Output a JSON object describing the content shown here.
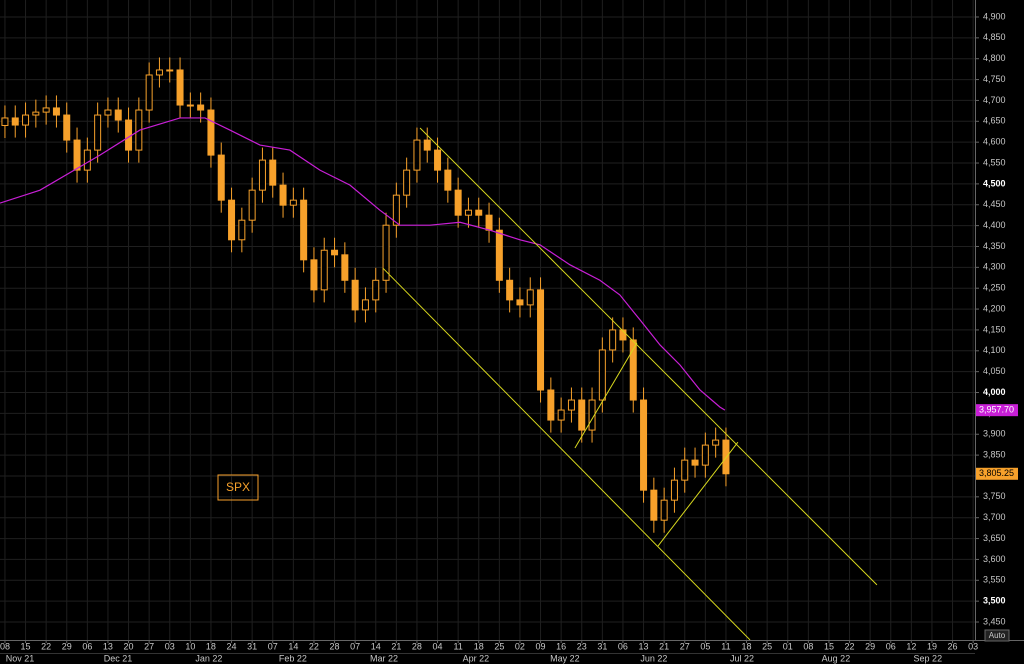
{
  "chart_data": {
    "type": "candlestick",
    "annotation": "SPX",
    "scale_mode": "Auto",
    "xlim": [
      -0.24,
      47.09
    ],
    "ylim": [
      3406.9,
      4940.7
    ],
    "grid": true,
    "xticks": [
      {
        "value": 0,
        "label": "08"
      },
      {
        "value": 1,
        "label": "15"
      },
      {
        "value": 2,
        "label": "22"
      },
      {
        "value": 3,
        "label": "29"
      },
      {
        "value": 4,
        "label": "06"
      },
      {
        "value": 5,
        "label": "13"
      },
      {
        "value": 6,
        "label": "20"
      },
      {
        "value": 7,
        "label": "27"
      },
      {
        "value": 8,
        "label": "03"
      },
      {
        "value": 9,
        "label": "10"
      },
      {
        "value": 10,
        "label": "18"
      },
      {
        "value": 11,
        "label": "24"
      },
      {
        "value": 12,
        "label": "31"
      },
      {
        "value": 13,
        "label": "07"
      },
      {
        "value": 14,
        "label": "14"
      },
      {
        "value": 15,
        "label": "22"
      },
      {
        "value": 16,
        "label": "28"
      },
      {
        "value": 17,
        "label": "07"
      },
      {
        "value": 18,
        "label": "14"
      },
      {
        "value": 19,
        "label": "21"
      },
      {
        "value": 20,
        "label": "28"
      },
      {
        "value": 21,
        "label": "04"
      },
      {
        "value": 22,
        "label": "11"
      },
      {
        "value": 23,
        "label": "18"
      },
      {
        "value": 24,
        "label": "25"
      },
      {
        "value": 25,
        "label": "02"
      },
      {
        "value": 26,
        "label": "09"
      },
      {
        "value": 27,
        "label": "16"
      },
      {
        "value": 28,
        "label": "23"
      },
      {
        "value": 29,
        "label": "31"
      },
      {
        "value": 30,
        "label": "06"
      },
      {
        "value": 31,
        "label": "13"
      },
      {
        "value": 32,
        "label": "21"
      },
      {
        "value": 33,
        "label": "27"
      },
      {
        "value": 34,
        "label": "05"
      },
      {
        "value": 35,
        "label": "11"
      },
      {
        "value": 36,
        "label": "18"
      },
      {
        "value": 37,
        "label": "25"
      },
      {
        "value": 38,
        "label": "01"
      },
      {
        "value": 39,
        "label": "08"
      },
      {
        "value": 40,
        "label": "15"
      },
      {
        "value": 41,
        "label": "22"
      },
      {
        "value": 42,
        "label": "29"
      },
      {
        "value": 43,
        "label": "06"
      },
      {
        "value": 44,
        "label": "12"
      },
      {
        "value": 45,
        "label": "19"
      },
      {
        "value": 46,
        "label": "26"
      },
      {
        "value": 47,
        "label": "03"
      }
    ],
    "months": [
      {
        "value": 0.73,
        "label": "Nov 21"
      },
      {
        "value": 5.49,
        "label": "Dec 21"
      },
      {
        "value": 9.9,
        "label": "Jan 22"
      },
      {
        "value": 13.98,
        "label": "Feb 22"
      },
      {
        "value": 18.4,
        "label": "Mar 22"
      },
      {
        "value": 22.86,
        "label": "Apr 22"
      },
      {
        "value": 27.18,
        "label": "May 22"
      },
      {
        "value": 31.5,
        "label": "Jun 22"
      },
      {
        "value": 35.78,
        "label": "Jul 22"
      },
      {
        "value": 40.34,
        "label": "Aug 22"
      },
      {
        "value": 44.8,
        "label": "Sep 22"
      }
    ],
    "yticks": [
      {
        "value": 3450,
        "label": "3,450"
      },
      {
        "value": 3500,
        "label": "3,500"
      },
      {
        "value": 3550,
        "label": "3,550"
      },
      {
        "value": 3600,
        "label": "3,600"
      },
      {
        "value": 3650,
        "label": "3,650"
      },
      {
        "value": 3700,
        "label": "3,700"
      },
      {
        "value": 3750,
        "label": "3,750"
      },
      {
        "value": 3800,
        "label": "3,800"
      },
      {
        "value": 3850,
        "label": "3,850"
      },
      {
        "value": 3900,
        "label": "3,900"
      },
      {
        "value": 3950,
        "label": "3,950"
      },
      {
        "value": 4000,
        "label": "4,000"
      },
      {
        "value": 4050,
        "label": "4,050"
      },
      {
        "value": 4100,
        "label": "4,100"
      },
      {
        "value": 4150,
        "label": "4,150"
      },
      {
        "value": 4200,
        "label": "4,200"
      },
      {
        "value": 4250,
        "label": "4,250"
      },
      {
        "value": 4300,
        "label": "4,300"
      },
      {
        "value": 4350,
        "label": "4,350"
      },
      {
        "value": 4400,
        "label": "4,400"
      },
      {
        "value": 4450,
        "label": "4,450"
      },
      {
        "value": 4500,
        "label": "4,500"
      },
      {
        "value": 4550,
        "label": "4,550"
      },
      {
        "value": 4600,
        "label": "4,600"
      },
      {
        "value": 4650,
        "label": "4,650"
      },
      {
        "value": 4700,
        "label": "4,700"
      },
      {
        "value": 4750,
        "label": "4,750"
      },
      {
        "value": 4800,
        "label": "4,800"
      },
      {
        "value": 4850,
        "label": "4,850"
      },
      {
        "value": 4900,
        "label": "4,900"
      }
    ],
    "candles": {
      "color": "#f7a12b",
      "last_label": "3,805.25",
      "x": [
        0,
        0.5,
        1,
        1.5,
        2,
        2.5,
        3,
        3.5,
        4,
        4.5,
        5,
        5.5,
        6,
        6.5,
        7,
        7.5,
        8,
        8.5,
        9,
        9.5,
        10,
        10.5,
        11,
        11.5,
        12,
        12.5,
        13,
        13.5,
        14,
        14.5,
        15,
        15.5,
        16,
        16.5,
        17,
        17.5,
        18,
        18.5,
        19,
        19.5,
        20,
        20.5,
        21,
        21.5,
        22,
        22.5,
        23,
        23.5,
        24,
        24.5,
        25,
        25.5,
        26,
        26.5,
        27,
        27.5,
        28,
        28.5,
        29,
        29.5,
        30,
        30.5,
        31,
        31.5,
        32,
        32.5,
        33,
        33.5,
        34,
        34.5,
        35
      ],
      "open": [
        4640,
        4658,
        4641,
        4665,
        4672,
        4682,
        4665,
        4605,
        4533,
        4581,
        4665,
        4677,
        4653,
        4581,
        4677,
        4761,
        4773,
        4773,
        4689,
        4689,
        4677,
        4569,
        4461,
        4366,
        4413,
        4485,
        4557,
        4497,
        4449,
        4461,
        4318,
        4246,
        4341,
        4330,
        4269,
        4198,
        4222,
        4269,
        4401,
        4473,
        4533,
        4605,
        4581,
        4533,
        4485,
        4425,
        4437,
        4425,
        4389,
        4269,
        4222,
        4210,
        4246,
        4006,
        3934,
        3958,
        3982,
        3910,
        3982,
        4102,
        4150,
        4126,
        3982,
        3766,
        3694,
        3742,
        3790,
        3838,
        3826,
        3874,
        3886
      ],
      "high": [
        4688,
        4688,
        4695,
        4702,
        4712,
        4712,
        4695,
        4635,
        4611,
        4695,
        4707,
        4707,
        4683,
        4707,
        4791,
        4803,
        4803,
        4803,
        4719,
        4719,
        4707,
        4599,
        4491,
        4443,
        4515,
        4587,
        4587,
        4527,
        4491,
        4491,
        4348,
        4371,
        4371,
        4360,
        4299,
        4252,
        4299,
        4431,
        4503,
        4563,
        4635,
        4635,
        4611,
        4563,
        4515,
        4467,
        4467,
        4455,
        4419,
        4299,
        4252,
        4276,
        4276,
        4036,
        3988,
        4012,
        4012,
        4012,
        4132,
        4180,
        4180,
        4156,
        4012,
        3796,
        3772,
        3820,
        3868,
        3868,
        3904,
        3916,
        3916
      ],
      "low": [
        4610,
        4611,
        4611,
        4635,
        4642,
        4635,
        4575,
        4503,
        4503,
        4551,
        4635,
        4623,
        4551,
        4551,
        4647,
        4731,
        4743,
        4659,
        4659,
        4647,
        4539,
        4431,
        4336,
        4336,
        4383,
        4455,
        4467,
        4419,
        4419,
        4288,
        4216,
        4216,
        4300,
        4239,
        4168,
        4168,
        4192,
        4239,
        4371,
        4443,
        4503,
        4551,
        4503,
        4455,
        4395,
        4395,
        4395,
        4359,
        4239,
        4192,
        4180,
        4180,
        3976,
        3904,
        3904,
        3928,
        3880,
        3880,
        3952,
        4072,
        4096,
        3952,
        3736,
        3664,
        3664,
        3712,
        3760,
        3796,
        3796,
        3844,
        3775.25
      ],
      "close": [
        4658,
        4641,
        4665,
        4672,
        4682,
        4665,
        4605,
        4533,
        4581,
        4665,
        4677,
        4653,
        4581,
        4677,
        4761,
        4773,
        4773,
        4689,
        4689,
        4677,
        4569,
        4461,
        4366,
        4413,
        4485,
        4557,
        4497,
        4449,
        4461,
        4318,
        4246,
        4341,
        4330,
        4269,
        4198,
        4222,
        4269,
        4401,
        4473,
        4533,
        4605,
        4581,
        4533,
        4485,
        4425,
        4437,
        4425,
        4389,
        4269,
        4222,
        4210,
        4246,
        4006,
        3934,
        3958,
        3982,
        3910,
        3982,
        4102,
        4150,
        4126,
        3982,
        3766,
        3694,
        3742,
        3790,
        3838,
        3826,
        3874,
        3886,
        3805.25
      ]
    },
    "ma": {
      "color": "#c81fd6",
      "last_label": "3,957.70",
      "x": [
        -0.24,
        1.7,
        4.61,
        6.55,
        8.5,
        9.71,
        10.92,
        12.38,
        13.83,
        15.29,
        16.75,
        18.2,
        19.17,
        20.63,
        22.09,
        23.54,
        25.0,
        25.97,
        27.43,
        28.88,
        29.85,
        30.83,
        31.8,
        32.77,
        33.74,
        34.71,
        34.95
      ],
      "values": [
        4454,
        4485,
        4569,
        4629,
        4658,
        4658,
        4629,
        4593,
        4581,
        4533,
        4497,
        4437,
        4401,
        4401,
        4408,
        4389,
        4366,
        4354,
        4306,
        4269,
        4234,
        4174,
        4114,
        4066,
        4006,
        3965,
        3957.7
      ]
    },
    "trendlines": {
      "color": "#d8d81e",
      "x": [
        [
          18.35,
          36.17
        ],
        [
          20.15,
          42.33
        ],
        [
          27.67,
          30.68
        ],
        [
          31.7,
          35.58
        ]
      ],
      "y": [
        [
          4298,
          3407
        ],
        [
          4634,
          3539
        ],
        [
          3867,
          4119
        ],
        [
          3632,
          3881
        ]
      ]
    }
  }
}
